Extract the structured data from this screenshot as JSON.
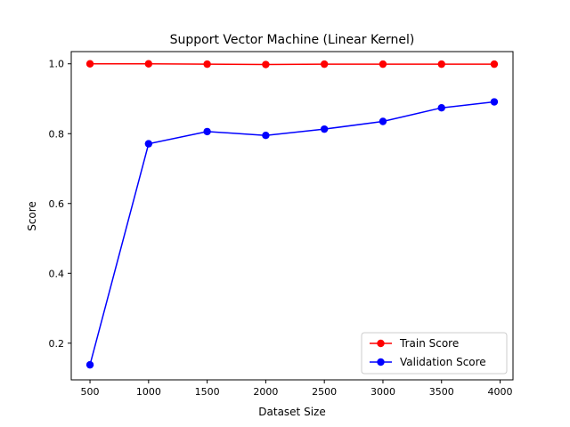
{
  "chart_data": {
    "type": "line",
    "title": "Support Vector Machine (Linear Kernel)",
    "xlabel": "Dataset Size",
    "ylabel": "Score",
    "x": [
      500,
      1000,
      1500,
      2000,
      2500,
      3000,
      3500,
      3950
    ],
    "xlim": [
      340,
      4110
    ],
    "ylim": [
      0.095,
      1.035
    ],
    "xticks": [
      500,
      1000,
      1500,
      2000,
      2500,
      3000,
      3500,
      4000
    ],
    "xtick_labels": [
      "500",
      "1000",
      "1500",
      "2000",
      "2500",
      "3000",
      "3500",
      "4000"
    ],
    "yticks": [
      0.2,
      0.4,
      0.6,
      0.8,
      1.0
    ],
    "ytick_labels": [
      "0.2",
      "0.4",
      "0.6",
      "0.8",
      "1.0"
    ],
    "grid": false,
    "legend_position": "lower-right",
    "series": [
      {
        "name": "Train Score",
        "color": "#ff0000",
        "values": [
          1.0,
          1.0,
          0.999,
          0.998,
          0.999,
          0.999,
          0.999,
          0.999
        ]
      },
      {
        "name": "Validation Score",
        "color": "#0000ff",
        "values": [
          0.138,
          0.771,
          0.806,
          0.795,
          0.813,
          0.835,
          0.874,
          0.891
        ]
      }
    ]
  }
}
